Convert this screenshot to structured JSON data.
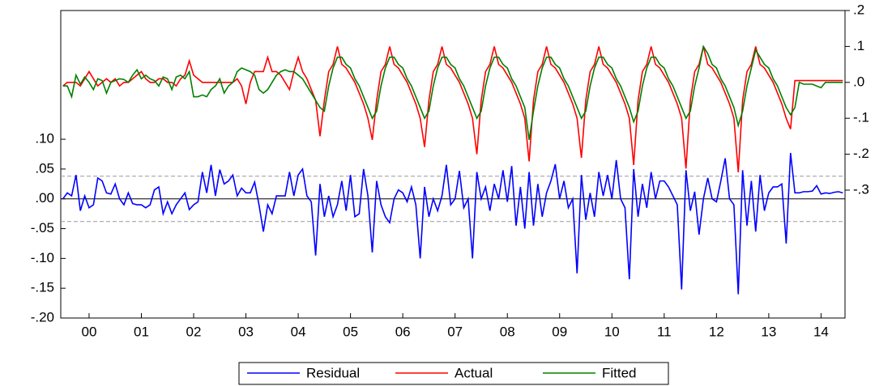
{
  "chart_data": {
    "type": "line",
    "categories": [
      null,
      null,
      null,
      null,
      null,
      null,
      "00",
      null,
      null,
      null,
      null,
      null,
      null,
      null,
      null,
      null,
      null,
      null,
      "01",
      null,
      null,
      null,
      null,
      null,
      null,
      null,
      null,
      null,
      null,
      null,
      "02",
      null,
      null,
      null,
      null,
      null,
      null,
      null,
      null,
      null,
      null,
      null,
      "03",
      null,
      null,
      null,
      null,
      null,
      null,
      null,
      null,
      null,
      null,
      null,
      "04",
      null,
      null,
      null,
      null,
      null,
      null,
      null,
      null,
      null,
      null,
      null,
      "05",
      null,
      null,
      null,
      null,
      null,
      null,
      null,
      null,
      null,
      null,
      null,
      "06",
      null,
      null,
      null,
      null,
      null,
      null,
      null,
      null,
      null,
      null,
      null,
      "07",
      null,
      null,
      null,
      null,
      null,
      null,
      null,
      null,
      null,
      null,
      null,
      "08",
      null,
      null,
      null,
      null,
      null,
      null,
      null,
      null,
      null,
      null,
      null,
      "09",
      null,
      null,
      null,
      null,
      null,
      null,
      null,
      null,
      null,
      null,
      null,
      "10",
      null,
      null,
      null,
      null,
      null,
      null,
      null,
      null,
      null,
      null,
      null,
      "11",
      null,
      null,
      null,
      null,
      null,
      null,
      null,
      null,
      null,
      null,
      null,
      "12",
      null,
      null,
      null,
      null,
      null,
      null,
      null,
      null,
      null,
      null,
      null,
      "13",
      null,
      null,
      null,
      null,
      null,
      null,
      null,
      null,
      null,
      null,
      null,
      "14",
      null,
      null,
      null,
      null,
      null
    ],
    "series": [
      {
        "name": "Residual",
        "color": "#0000ff",
        "axis": "y",
        "values": [
          0.0,
          0.01,
          0.005,
          0.04,
          -0.02,
          0.005,
          -0.015,
          -0.01,
          0.035,
          0.03,
          0.01,
          0.008,
          0.025,
          0.0,
          -0.01,
          0.01,
          -0.008,
          -0.01,
          -0.01,
          -0.015,
          -0.01,
          0.015,
          0.02,
          -0.025,
          -0.005,
          -0.025,
          -0.01,
          0.0,
          0.01,
          -0.018,
          -0.01,
          -0.005,
          0.045,
          0.01,
          0.057,
          0.005,
          0.049,
          0.025,
          0.03,
          0.04,
          0.005,
          0.018,
          0.01,
          0.01,
          0.028,
          -0.01,
          -0.055,
          -0.01,
          -0.025,
          0.005,
          0.005,
          0.005,
          0.045,
          0.005,
          0.04,
          0.05,
          0.005,
          -0.005,
          -0.095,
          0.025,
          -0.03,
          0.005,
          -0.03,
          -0.01,
          0.03,
          -0.02,
          0.04,
          -0.03,
          -0.025,
          0.05,
          0.005,
          -0.09,
          0.03,
          -0.01,
          -0.03,
          -0.04,
          0.0,
          0.015,
          0.01,
          -0.005,
          0.02,
          -0.01,
          -0.1,
          0.02,
          -0.03,
          0.0,
          -0.02,
          0.005,
          0.057,
          -0.01,
          0.0,
          0.047,
          -0.015,
          0.0,
          -0.1,
          0.045,
          0.0,
          0.02,
          -0.02,
          0.025,
          0.0,
          0.048,
          -0.005,
          0.055,
          -0.045,
          0.02,
          -0.05,
          0.045,
          -0.045,
          0.025,
          -0.03,
          0.01,
          0.03,
          0.058,
          0.0,
          0.03,
          -0.015,
          0.0,
          -0.125,
          0.04,
          -0.035,
          0.01,
          -0.03,
          0.045,
          0.005,
          0.04,
          0.0,
          0.065,
          0.0,
          -0.015,
          -0.135,
          0.05,
          -0.03,
          0.025,
          -0.015,
          0.045,
          0.0,
          0.03,
          0.03,
          0.02,
          0.005,
          -0.01,
          -0.152,
          0.048,
          -0.02,
          0.012,
          -0.06,
          0.0,
          0.035,
          0.0,
          -0.005,
          0.03,
          0.068,
          0.0,
          -0.01,
          -0.16,
          0.048,
          -0.045,
          0.03,
          -0.055,
          0.04,
          -0.02,
          0.01,
          0.02,
          0.02,
          0.025,
          -0.075,
          0.077,
          0.01,
          0.01,
          0.012,
          0.012,
          0.013,
          0.022,
          0.008,
          0.01,
          0.009,
          0.011,
          0.012,
          0.01
        ]
      },
      {
        "name": "Actual",
        "color": "#ff0000",
        "axis": "y2",
        "values": [
          -0.01,
          0.0,
          0.0,
          0.0,
          -0.01,
          0.01,
          0.03,
          0.01,
          -0.01,
          0.0,
          0.01,
          0.0,
          0.01,
          -0.01,
          0.0,
          0.0,
          0.01,
          0.02,
          0.03,
          0.01,
          0.0,
          0.0,
          0.01,
          0.01,
          0.0,
          0.0,
          -0.01,
          0.01,
          0.02,
          0.06,
          0.02,
          0.01,
          0.0,
          0.0,
          0.0,
          0.0,
          0.0,
          0.0,
          0.0,
          0.0,
          0.01,
          -0.01,
          -0.06,
          0.0,
          0.03,
          0.03,
          0.03,
          0.07,
          0.03,
          0.03,
          0.02,
          0.0,
          -0.02,
          0.03,
          0.07,
          0.03,
          0.01,
          -0.02,
          -0.05,
          -0.15,
          -0.05,
          0.03,
          0.05,
          0.1,
          0.05,
          0.04,
          0.02,
          0.0,
          -0.03,
          -0.06,
          -0.1,
          -0.16,
          -0.05,
          0.03,
          0.05,
          0.1,
          0.05,
          0.04,
          0.02,
          0.0,
          -0.03,
          -0.06,
          -0.1,
          -0.18,
          -0.05,
          0.03,
          0.05,
          0.1,
          0.05,
          0.04,
          0.02,
          0.0,
          -0.03,
          -0.06,
          -0.1,
          -0.2,
          -0.05,
          0.03,
          0.05,
          0.1,
          0.05,
          0.04,
          0.02,
          0.0,
          -0.03,
          -0.06,
          -0.1,
          -0.22,
          -0.05,
          0.03,
          0.05,
          0.1,
          0.05,
          0.04,
          0.02,
          0.0,
          -0.03,
          -0.06,
          -0.1,
          -0.21,
          -0.05,
          0.03,
          0.05,
          0.1,
          0.05,
          0.04,
          0.02,
          0.0,
          -0.03,
          -0.06,
          -0.1,
          -0.23,
          -0.05,
          0.03,
          0.05,
          0.1,
          0.05,
          0.04,
          0.02,
          0.0,
          -0.03,
          -0.06,
          -0.1,
          -0.24,
          -0.05,
          0.03,
          0.05,
          0.1,
          0.05,
          0.04,
          0.02,
          0.0,
          -0.03,
          -0.06,
          -0.1,
          -0.25,
          -0.05,
          0.03,
          0.05,
          0.1,
          0.05,
          0.04,
          0.02,
          0.0,
          -0.03,
          -0.06,
          -0.1,
          -0.13,
          0.005,
          0.005,
          0.005,
          0.005,
          0.005,
          0.005,
          0.005,
          0.005,
          0.005,
          0.005,
          0.005,
          0.005
        ]
      },
      {
        "name": "Fitted",
        "color": "#008000",
        "axis": "y2",
        "values": [
          -0.01,
          -0.01,
          -0.04,
          0.02,
          -0.005,
          0.015,
          0.0,
          -0.02,
          0.01,
          0.005,
          -0.03,
          0.0,
          0.005,
          0.01,
          0.008,
          0.0,
          0.02,
          0.035,
          0.01,
          0.02,
          0.01,
          0.005,
          -0.01,
          0.015,
          0.01,
          -0.02,
          0.015,
          0.02,
          0.01,
          0.03,
          -0.04,
          -0.04,
          -0.035,
          -0.04,
          -0.02,
          -0.01,
          0.01,
          -0.03,
          -0.01,
          0.0,
          0.03,
          0.04,
          0.035,
          0.03,
          0.02,
          -0.02,
          -0.03,
          -0.02,
          0.0,
          0.02,
          0.03,
          0.035,
          0.03,
          0.03,
          0.02,
          0.01,
          -0.01,
          -0.03,
          -0.05,
          -0.07,
          -0.08,
          -0.01,
          0.04,
          0.07,
          0.07,
          0.05,
          0.04,
          0.01,
          -0.01,
          -0.04,
          -0.07,
          -0.1,
          -0.08,
          -0.01,
          0.04,
          0.07,
          0.07,
          0.05,
          0.04,
          0.01,
          -0.01,
          -0.04,
          -0.07,
          -0.1,
          -0.08,
          -0.01,
          0.04,
          0.07,
          0.07,
          0.05,
          0.04,
          0.01,
          -0.01,
          -0.04,
          -0.07,
          -0.1,
          -0.08,
          -0.01,
          0.04,
          0.07,
          0.07,
          0.05,
          0.04,
          0.01,
          -0.01,
          -0.04,
          -0.07,
          -0.16,
          -0.08,
          -0.01,
          0.04,
          0.07,
          0.07,
          0.05,
          0.04,
          0.01,
          -0.01,
          -0.04,
          -0.07,
          -0.1,
          -0.08,
          -0.01,
          0.04,
          0.07,
          0.07,
          0.05,
          0.04,
          0.01,
          -0.01,
          -0.04,
          -0.07,
          -0.11,
          -0.08,
          -0.01,
          0.04,
          0.07,
          0.07,
          0.05,
          0.04,
          0.01,
          -0.01,
          -0.04,
          -0.07,
          -0.1,
          -0.08,
          -0.01,
          0.04,
          0.1,
          0.08,
          0.05,
          0.04,
          0.01,
          -0.01,
          -0.04,
          -0.07,
          -0.12,
          -0.08,
          -0.01,
          0.04,
          0.09,
          0.07,
          0.05,
          0.04,
          0.01,
          -0.01,
          -0.04,
          -0.07,
          -0.09,
          -0.07,
          0.0,
          -0.005,
          -0.005,
          -0.005,
          -0.01,
          -0.015,
          0.0,
          0.0,
          0.0,
          0.0,
          0.0
        ]
      }
    ],
    "ylim": [
      -0.2,
      0.316
    ],
    "yticks": [
      {
        "value": -0.2,
        "label": "-.20"
      },
      {
        "value": -0.15,
        "label": "-.15"
      },
      {
        "value": -0.1,
        "label": "-.10"
      },
      {
        "value": -0.05,
        "label": "-.05"
      },
      {
        "value": 0,
        "label": ".00"
      },
      {
        "value": 0.05,
        "label": ".05"
      },
      {
        "value": 0.1,
        "label": ".10"
      }
    ],
    "y2lim": [
      -0.656,
      0.2
    ],
    "y2ticks": [
      {
        "value": -0.3,
        "label": "-.3"
      },
      {
        "value": -0.2,
        "label": "-.2"
      },
      {
        "value": -0.1,
        "label": "-.1"
      },
      {
        "value": 0,
        "label": ".0"
      },
      {
        "value": 0.1,
        "label": ".1"
      },
      {
        "value": 0.2,
        "label": ".2"
      }
    ],
    "reference_lines": [
      0.038,
      -0.038
    ],
    "legend": "bottom"
  }
}
